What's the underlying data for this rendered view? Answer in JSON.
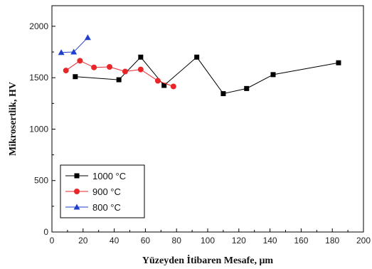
{
  "chart_data": {
    "type": "line",
    "xlabel": "Yüzeyden İtibaren Mesafe, μm",
    "ylabel": "Mikrosertlik, HV",
    "xlim": [
      0,
      200
    ],
    "ylim": [
      0,
      2200
    ],
    "x_ticks": [
      "0",
      "20",
      "40",
      "60",
      "80",
      "100",
      "120",
      "140",
      "160",
      "180",
      "200"
    ],
    "y_ticks": [
      "0",
      "500",
      "1000",
      "1500",
      "2000"
    ],
    "grid": false,
    "legend_position": "bottom-left",
    "series": [
      {
        "name": "1000 °C",
        "color": "#000000",
        "marker": "square",
        "x": [
          15,
          43,
          57,
          72,
          93,
          110,
          125,
          142,
          184
        ],
        "y": [
          1510,
          1480,
          1700,
          1425,
          1700,
          1345,
          1395,
          1530,
          1645
        ]
      },
      {
        "name": "900 °C",
        "color": "#e8262a",
        "marker": "circle",
        "x": [
          9,
          18,
          27,
          37,
          47,
          57,
          68,
          78
        ],
        "y": [
          1570,
          1665,
          1600,
          1605,
          1560,
          1580,
          1470,
          1415
        ]
      },
      {
        "name": "800 °C",
        "color": "#1f3fcc",
        "marker": "triangle",
        "x": [
          6,
          14,
          23
        ],
        "y": [
          1745,
          1750,
          1890
        ]
      }
    ]
  }
}
